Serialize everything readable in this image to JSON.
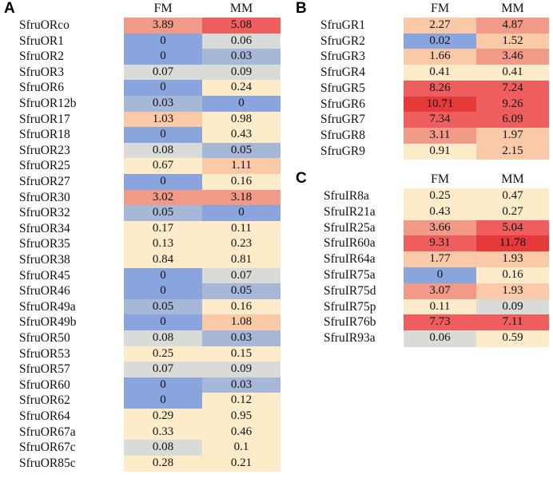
{
  "chart_data": [
    {
      "type": "heatmap",
      "panel_label": "A",
      "columns": [
        "FM",
        "MM"
      ],
      "rows": [
        {
          "label": "SfruORco",
          "values": [
            3.89,
            5.08
          ]
        },
        {
          "label": "SfruOR1",
          "values": [
            0,
            0.06
          ]
        },
        {
          "label": "SfruOR2",
          "values": [
            0,
            0.03
          ]
        },
        {
          "label": "SfruOR3",
          "values": [
            0.07,
            0.09
          ]
        },
        {
          "label": "SfruOR6",
          "values": [
            0,
            0.24
          ]
        },
        {
          "label": "SfruOR12b",
          "values": [
            0.03,
            0
          ]
        },
        {
          "label": "SfruOR17",
          "values": [
            1.03,
            0.98
          ]
        },
        {
          "label": "SfruOR18",
          "values": [
            0,
            0.43
          ]
        },
        {
          "label": "SfruOR23",
          "values": [
            0.08,
            0.05
          ]
        },
        {
          "label": "SfruOR25",
          "values": [
            0.67,
            1.11
          ]
        },
        {
          "label": "SfruOR27",
          "values": [
            0,
            0.16
          ]
        },
        {
          "label": "SfruOR30",
          "values": [
            3.02,
            3.18
          ]
        },
        {
          "label": "SfruOR32",
          "values": [
            0.05,
            0
          ]
        },
        {
          "label": "SfruOR34",
          "values": [
            0.17,
            0.11
          ]
        },
        {
          "label": "SfruOR35",
          "values": [
            0.13,
            0.23
          ]
        },
        {
          "label": "SfruOR38",
          "values": [
            0.84,
            0.81
          ]
        },
        {
          "label": "SfruOR45",
          "values": [
            0,
            0.07
          ]
        },
        {
          "label": "SfruOR46",
          "values": [
            0,
            0.05
          ]
        },
        {
          "label": "SfruOR49a",
          "values": [
            0.05,
            0.16
          ]
        },
        {
          "label": "SfruOR49b",
          "values": [
            0,
            1.08
          ]
        },
        {
          "label": "SfruOR50",
          "values": [
            0.08,
            0.03
          ]
        },
        {
          "label": "SfruOR53",
          "values": [
            0.25,
            0.15
          ]
        },
        {
          "label": "SfruOR57",
          "values": [
            0.07,
            0.09
          ]
        },
        {
          "label": "SfruOR60",
          "values": [
            0,
            0.03
          ]
        },
        {
          "label": "SfruOR62",
          "values": [
            0,
            0.12
          ]
        },
        {
          "label": "SfruOR64",
          "values": [
            0.29,
            0.95
          ]
        },
        {
          "label": "SfruOR67a",
          "values": [
            0.33,
            0.46
          ]
        },
        {
          "label": "SfruOR67c",
          "values": [
            0.08,
            0.1
          ]
        },
        {
          "label": "SfruOR85c",
          "values": [
            0.28,
            0.21
          ]
        }
      ],
      "colors": [
        "#8aa4dd",
        "#a7b7d8",
        "#d9dbd8",
        "#fdebc9",
        "#f9c9a8",
        "#f19a88",
        "#ef5e5e",
        "#e63a3a"
      ]
    },
    {
      "type": "heatmap",
      "panel_label": "B",
      "columns": [
        "FM",
        "MM"
      ],
      "rows": [
        {
          "label": "SfruGR1",
          "values": [
            2.27,
            4.87
          ]
        },
        {
          "label": "SfruGR2",
          "values": [
            0.02,
            1.52
          ]
        },
        {
          "label": "SfruGR3",
          "values": [
            1.66,
            3.46
          ]
        },
        {
          "label": "SfruGR4",
          "values": [
            0.41,
            0.41
          ]
        },
        {
          "label": "SfruGR5",
          "values": [
            8.26,
            7.24
          ]
        },
        {
          "label": "SfruGR6",
          "values": [
            10.71,
            9.26
          ]
        },
        {
          "label": "SfruGR7",
          "values": [
            7.34,
            6.09
          ]
        },
        {
          "label": "SfruGR8",
          "values": [
            3.11,
            1.97
          ]
        },
        {
          "label": "SfruGR9",
          "values": [
            0.91,
            2.15
          ]
        }
      ],
      "colors": [
        "#8aa4dd",
        "#a7b7d8",
        "#d9dbd8",
        "#fdebc9",
        "#f9c9a8",
        "#f19a88",
        "#ef5e5e",
        "#e63a3a"
      ]
    },
    {
      "type": "heatmap",
      "panel_label": "C",
      "columns": [
        "FM",
        "MM"
      ],
      "rows": [
        {
          "label": "SfruIR8a",
          "values": [
            0.25,
            0.47
          ]
        },
        {
          "label": "SfruIR21a",
          "values": [
            0.43,
            0.27
          ]
        },
        {
          "label": "SfruIR25a",
          "values": [
            3.66,
            5.04
          ]
        },
        {
          "label": "SfruIR60a",
          "values": [
            9.31,
            11.78
          ]
        },
        {
          "label": "SfruIR64a",
          "values": [
            1.77,
            1.93
          ]
        },
        {
          "label": "SfruIR75a",
          "values": [
            0,
            0.16
          ]
        },
        {
          "label": "SfruIR75d",
          "values": [
            3.07,
            1.93
          ]
        },
        {
          "label": "SfruIR75p",
          "values": [
            0.11,
            0.09
          ]
        },
        {
          "label": "SfruIR76b",
          "values": [
            7.73,
            7.11
          ]
        },
        {
          "label": "SfruIR93a",
          "values": [
            0.06,
            0.59
          ]
        }
      ],
      "colors": [
        "#8aa4dd",
        "#a7b7d8",
        "#d9dbd8",
        "#fdebc9",
        "#f9c9a8",
        "#f19a88",
        "#ef5e5e",
        "#e63a3a"
      ]
    }
  ]
}
